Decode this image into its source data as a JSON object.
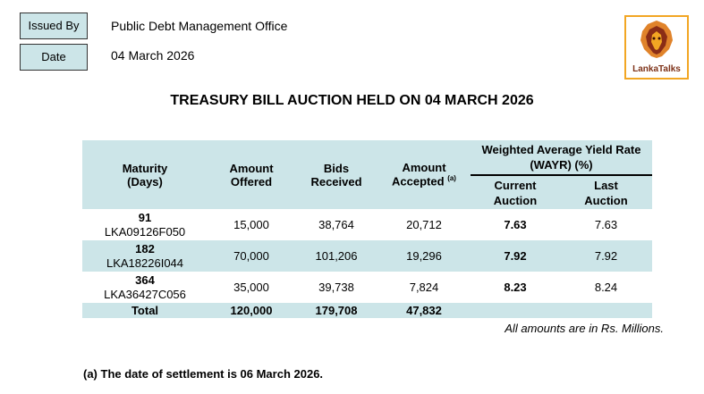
{
  "issued_by": {
    "label": "Issued By",
    "value": "Public Debt Management Office"
  },
  "date": {
    "label": "Date",
    "value": "04 March 2026"
  },
  "logo": {
    "text": "LankaTalks",
    "primary_color": "#7d3117",
    "accent_color": "#f2a623"
  },
  "title": "TREASURY BILL AUCTION HELD ON 04 MARCH 2026",
  "table": {
    "headers": {
      "maturity_line1": "Maturity",
      "maturity_line2": "(Days)",
      "offered_line1": "Amount",
      "offered_line2": "Offered",
      "bids_line1": "Bids",
      "bids_line2": "Received",
      "accepted_line1": "Amount",
      "accepted_line2": "Accepted",
      "accepted_note": "(a)",
      "wayr_line1": "Weighted Average Yield Rate",
      "wayr_line2": "(WAYR) (%)",
      "current_line1": "Current",
      "current_line2": "Auction",
      "last_line1": "Last",
      "last_line2": "Auction"
    },
    "rows": [
      {
        "days": "91",
        "code": "LKA09126F050",
        "offered": "15,000",
        "bids": "38,764",
        "accepted": "20,712",
        "current": "7.63",
        "last": "7.63"
      },
      {
        "days": "182",
        "code": "LKA18226I044",
        "offered": "70,000",
        "bids": "101,206",
        "accepted": "19,296",
        "current": "7.92",
        "last": "7.92"
      },
      {
        "days": "364",
        "code": "LKA36427C056",
        "offered": "35,000",
        "bids": "39,738",
        "accepted": "7,824",
        "current": "8.23",
        "last": "8.24"
      }
    ],
    "total": {
      "label": "Total",
      "offered": "120,000",
      "bids": "179,708",
      "accepted": "47,832"
    }
  },
  "note_amounts": "All amounts are in Rs. Millions.",
  "footnote": "(a) The date of settlement is 06 March 2026.",
  "colors": {
    "header_fill": "#cce5e8"
  }
}
